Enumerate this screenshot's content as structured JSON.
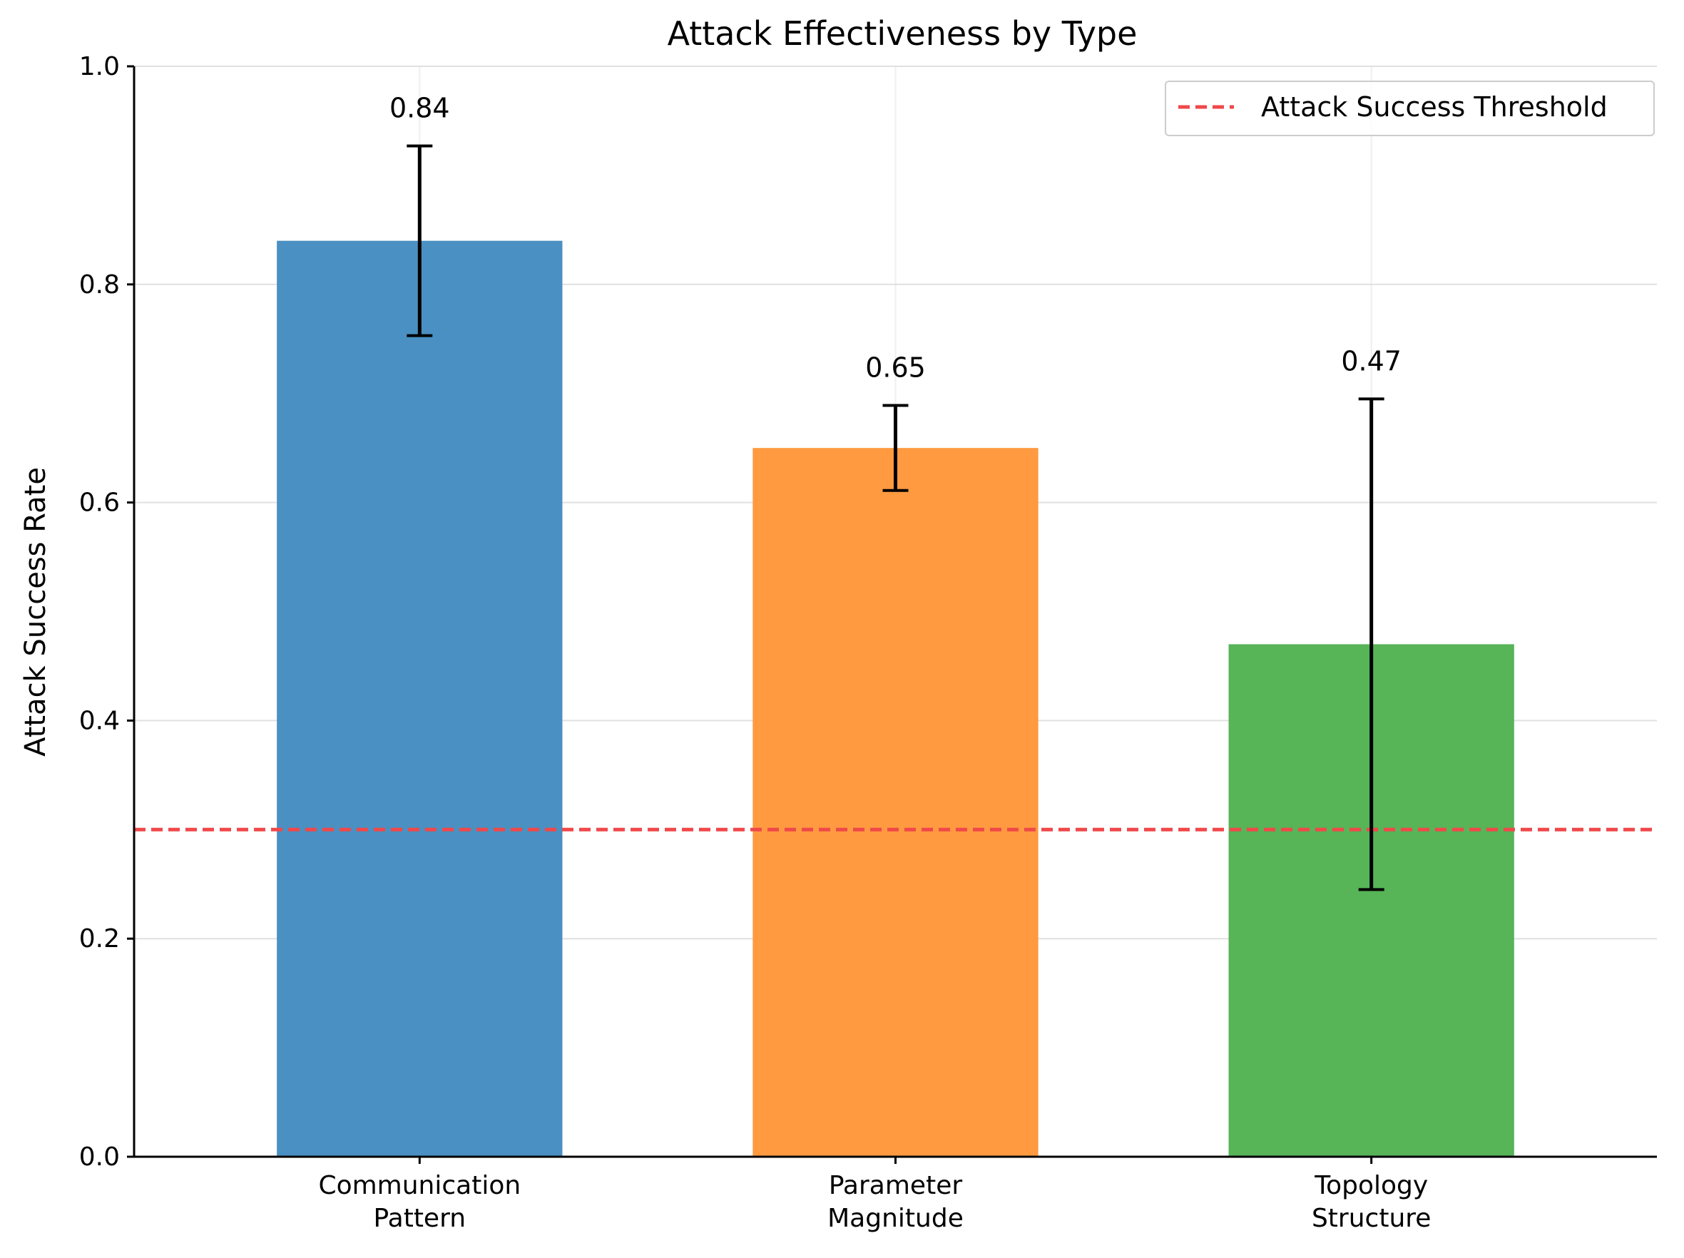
{
  "chart_data": {
    "type": "bar",
    "title": "Attack Effectiveness by Type",
    "xlabel": "",
    "ylabel": "Attack Success Rate",
    "categories": [
      [
        "Communication",
        "Pattern"
      ],
      [
        "Parameter",
        "Magnitude"
      ],
      [
        "Topology",
        "Structure"
      ]
    ],
    "values": [
      0.84,
      0.65,
      0.47
    ],
    "errors": [
      0.087,
      0.039,
      0.225
    ],
    "data_labels": [
      "0.84",
      "0.65",
      "0.47"
    ],
    "colors": [
      "#4a90c2",
      "#ff9a40",
      "#57b457"
    ],
    "ylim": [
      0,
      1.0
    ],
    "yticks": [
      0.0,
      0.2,
      0.4,
      0.6,
      0.8,
      1.0
    ],
    "ytick_labels": [
      "0.0",
      "0.2",
      "0.4",
      "0.6",
      "0.8",
      "1.0"
    ],
    "threshold": {
      "value": 0.3,
      "label": "Attack Success Threshold",
      "color": "#f0484a"
    },
    "grid": true,
    "legend_position": "top-right"
  }
}
